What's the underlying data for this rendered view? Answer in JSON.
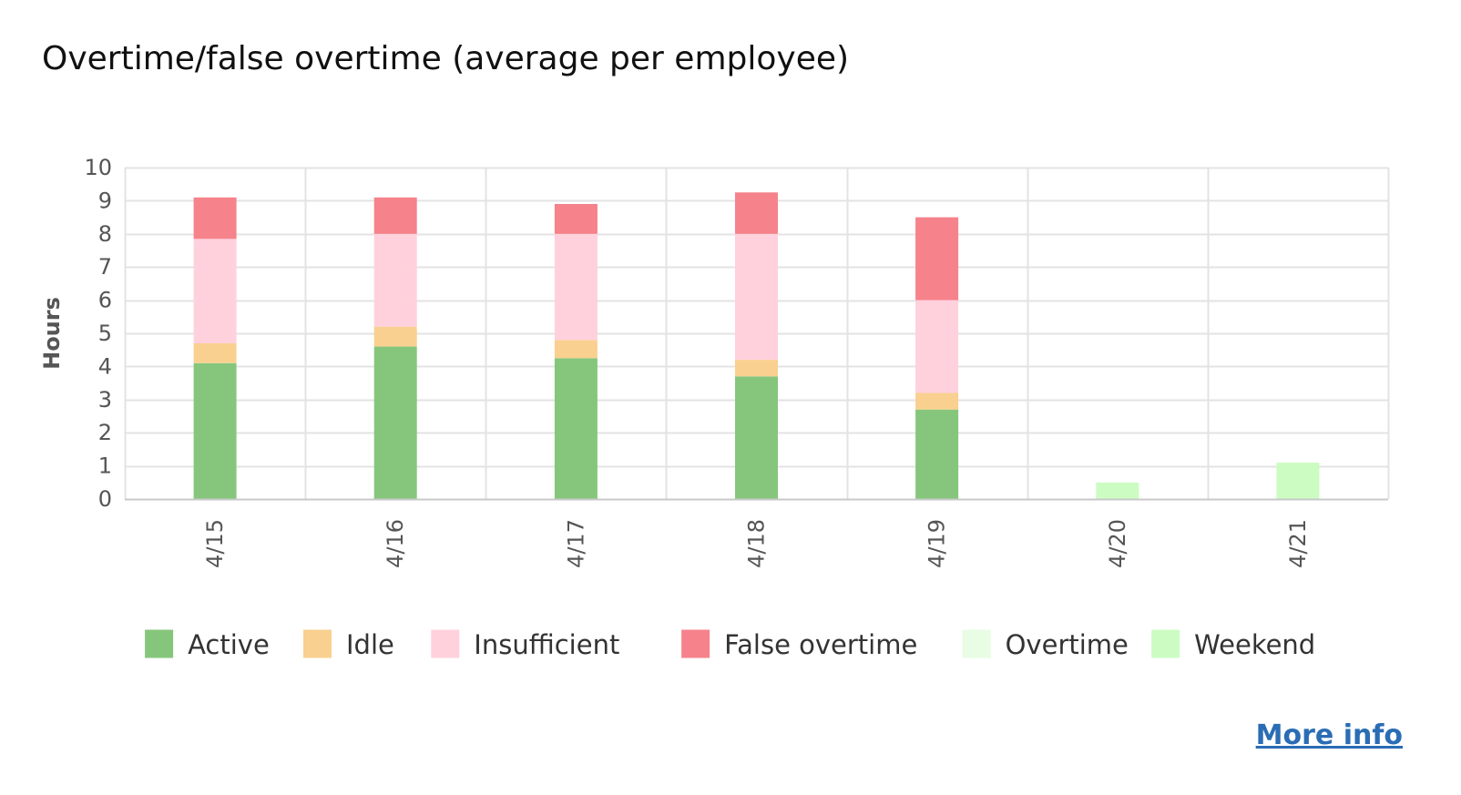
{
  "chart_data": {
    "type": "bar",
    "stacked": true,
    "title": "Overtime/false overtime (average per employee)",
    "ylabel": "Hours",
    "xlabel": "",
    "ylim": [
      0,
      10
    ],
    "yticks": [
      0,
      1,
      2,
      3,
      4,
      5,
      6,
      7,
      8,
      9,
      10
    ],
    "grid": true,
    "legend_position": "bottom",
    "categories": [
      "4/15",
      "4/16",
      "4/17",
      "4/18",
      "4/19",
      "4/20",
      "4/21"
    ],
    "series": [
      {
        "name": "Active",
        "color": "#86c67c",
        "values": [
          4.1,
          4.6,
          4.25,
          3.7,
          2.7,
          0,
          0
        ]
      },
      {
        "name": "Idle",
        "color": "#f9d08f",
        "values": [
          0.6,
          0.6,
          0.55,
          0.5,
          0.5,
          0,
          0
        ]
      },
      {
        "name": "Insufficient",
        "color": "#ffd1dc",
        "values": [
          3.15,
          2.8,
          3.2,
          3.8,
          2.8,
          0,
          0
        ]
      },
      {
        "name": "False overtime",
        "color": "#f6828b",
        "values": [
          1.25,
          1.1,
          0.9,
          1.25,
          2.5,
          0,
          0
        ]
      },
      {
        "name": "Overtime",
        "color": "#e8fde4",
        "values": [
          0,
          0,
          0,
          0,
          0,
          0,
          0
        ]
      },
      {
        "name": "Weekend",
        "color": "#cdfcc3",
        "values": [
          0,
          0,
          0,
          0,
          0,
          0.5,
          1.1
        ]
      }
    ]
  },
  "footer": {
    "more_info_label": "More info"
  }
}
